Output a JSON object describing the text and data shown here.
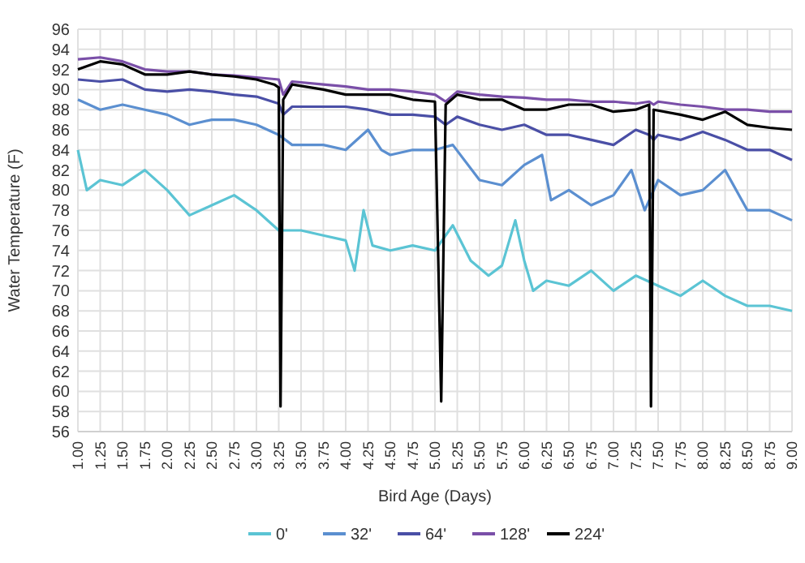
{
  "chart_data": {
    "type": "line",
    "xlabel": "Bird Age (Days)",
    "ylabel": "Water Temperature (F)",
    "xlim": [
      1,
      9
    ],
    "ylim": [
      56,
      96
    ],
    "xticks": [
      {
        "value": 1,
        "label": "1.00"
      },
      {
        "value": 1.25,
        "label": "1.25"
      },
      {
        "value": 1.5,
        "label": "1.50"
      },
      {
        "value": 1.75,
        "label": "1.75"
      },
      {
        "value": 2,
        "label": "2.00"
      },
      {
        "value": 2.25,
        "label": "2.25"
      },
      {
        "value": 2.5,
        "label": "2.50"
      },
      {
        "value": 2.75,
        "label": "2.75"
      },
      {
        "value": 3,
        "label": "3.00"
      },
      {
        "value": 3.25,
        "label": "3.25"
      },
      {
        "value": 3.5,
        "label": "3.50"
      },
      {
        "value": 3.75,
        "label": "3.75"
      },
      {
        "value": 4,
        "label": "4.00"
      },
      {
        "value": 4.25,
        "label": "4.25"
      },
      {
        "value": 4.5,
        "label": "4.50"
      },
      {
        "value": 4.75,
        "label": "4.75"
      },
      {
        "value": 5,
        "label": "5.00"
      },
      {
        "value": 5.25,
        "label": "5.25"
      },
      {
        "value": 5.5,
        "label": "5.50"
      },
      {
        "value": 5.75,
        "label": "5.75"
      },
      {
        "value": 6,
        "label": "6.00"
      },
      {
        "value": 6.25,
        "label": "6.25"
      },
      {
        "value": 6.5,
        "label": "6.50"
      },
      {
        "value": 6.75,
        "label": "6.75"
      },
      {
        "value": 7,
        "label": "7.00"
      },
      {
        "value": 7.25,
        "label": "7.25"
      },
      {
        "value": 7.5,
        "label": "7.50"
      },
      {
        "value": 7.75,
        "label": "7.75"
      },
      {
        "value": 8,
        "label": "8.00"
      },
      {
        "value": 8.25,
        "label": "8.25"
      },
      {
        "value": 8.5,
        "label": "8.50"
      },
      {
        "value": 8.75,
        "label": "8.75"
      },
      {
        "value": 9,
        "label": "9.00"
      }
    ],
    "yticks": [
      56,
      58,
      60,
      62,
      64,
      66,
      68,
      70,
      72,
      74,
      76,
      78,
      80,
      82,
      84,
      86,
      88,
      90,
      92,
      94,
      96
    ],
    "grid": true,
    "legend": "bottom",
    "marker": "none",
    "line_style": "solid",
    "series": [
      {
        "name": "0'",
        "color": "#5bc4d4",
        "x": [
          1,
          1.1,
          1.25,
          1.5,
          1.75,
          2,
          2.25,
          2.5,
          2.75,
          3,
          3.25,
          3.5,
          3.75,
          4,
          4.1,
          4.2,
          4.3,
          4.5,
          4.75,
          5,
          5.2,
          5.4,
          5.6,
          5.75,
          5.9,
          6,
          6.1,
          6.25,
          6.5,
          6.75,
          7,
          7.25,
          7.5,
          7.75,
          8,
          8.25,
          8.5,
          8.75,
          9
        ],
        "values": [
          84,
          80,
          81,
          80.5,
          82,
          80,
          77.5,
          78.5,
          79.5,
          78,
          76,
          76,
          75.5,
          75,
          72,
          78,
          74.5,
          74,
          74.5,
          74,
          76.5,
          73,
          71.5,
          72.5,
          77,
          73,
          70,
          71,
          70.5,
          72,
          70,
          71.5,
          70.5,
          69.5,
          71,
          69.5,
          68.5,
          68.5,
          68
        ]
      },
      {
        "name": "32'",
        "color": "#5b8fd0",
        "x": [
          1,
          1.25,
          1.5,
          1.75,
          2,
          2.25,
          2.5,
          2.75,
          3,
          3.25,
          3.4,
          3.75,
          4,
          4.25,
          4.4,
          4.5,
          4.75,
          5,
          5.2,
          5.5,
          5.75,
          6,
          6.2,
          6.3,
          6.5,
          6.75,
          7,
          7.2,
          7.35,
          7.5,
          7.75,
          8,
          8.25,
          8.5,
          8.75,
          9
        ],
        "values": [
          89,
          88,
          88.5,
          88,
          87.5,
          86.5,
          87,
          87,
          86.5,
          85.5,
          84.5,
          84.5,
          84,
          86,
          84,
          83.5,
          84,
          84,
          84.5,
          81,
          80.5,
          82.5,
          83.5,
          79,
          80,
          78.5,
          79.5,
          82,
          78,
          81,
          79.5,
          80,
          82,
          78,
          78,
          77
        ]
      },
      {
        "name": "64'",
        "color": "#4a4fa6",
        "x": [
          1,
          1.25,
          1.5,
          1.75,
          2,
          2.25,
          2.5,
          2.75,
          3,
          3.25,
          3.3,
          3.4,
          3.75,
          4,
          4.25,
          4.5,
          4.75,
          5,
          5.12,
          5.25,
          5.5,
          5.75,
          6,
          6.25,
          6.5,
          6.75,
          7,
          7.25,
          7.4,
          7.45,
          7.5,
          7.75,
          8,
          8.25,
          8.5,
          8.75,
          9
        ],
        "values": [
          91,
          90.8,
          91,
          90,
          89.8,
          90,
          89.8,
          89.5,
          89.3,
          88.6,
          87.5,
          88.3,
          88.3,
          88.3,
          88,
          87.5,
          87.5,
          87.3,
          86.5,
          87.3,
          86.5,
          86,
          86.5,
          85.5,
          85.5,
          85,
          84.5,
          86,
          85.5,
          85,
          85.5,
          85,
          85.8,
          85,
          84,
          84,
          83
        ]
      },
      {
        "name": "128'",
        "color": "#7a4fa8",
        "x": [
          1,
          1.25,
          1.5,
          1.75,
          2,
          2.25,
          2.5,
          2.75,
          3,
          3.25,
          3.3,
          3.4,
          3.75,
          4,
          4.25,
          4.5,
          4.75,
          5,
          5.12,
          5.25,
          5.5,
          5.75,
          6,
          6.25,
          6.5,
          6.75,
          7,
          7.25,
          7.4,
          7.45,
          7.5,
          7.75,
          8,
          8.25,
          8.5,
          8.75,
          9
        ],
        "values": [
          93,
          93.2,
          92.8,
          92,
          91.8,
          91.8,
          91.5,
          91.4,
          91.2,
          91,
          89.5,
          90.8,
          90.5,
          90.3,
          90,
          90,
          89.8,
          89.5,
          88.8,
          89.8,
          89.5,
          89.3,
          89.2,
          89,
          89,
          88.8,
          88.8,
          88.6,
          88.8,
          88.5,
          88.8,
          88.5,
          88.3,
          88,
          88,
          87.8,
          87.8
        ]
      },
      {
        "name": "224'",
        "color": "#000000",
        "x": [
          1,
          1.25,
          1.5,
          1.75,
          2,
          2.25,
          2.5,
          2.75,
          3,
          3.2,
          3.25,
          3.27,
          3.3,
          3.4,
          3.75,
          4,
          4.25,
          4.5,
          4.75,
          5,
          5.07,
          5.12,
          5.25,
          5.5,
          5.75,
          6,
          6.25,
          6.5,
          6.75,
          7,
          7.25,
          7.4,
          7.42,
          7.45,
          7.75,
          8,
          8.25,
          8.5,
          8.75,
          9
        ],
        "values": [
          92,
          92.8,
          92.5,
          91.5,
          91.5,
          91.8,
          91.5,
          91.3,
          91,
          90.5,
          90.2,
          58.5,
          89,
          90.5,
          90,
          89.5,
          89.5,
          89.5,
          89,
          88.8,
          59,
          88.5,
          89.5,
          89,
          89,
          88,
          88,
          88.5,
          88.5,
          87.8,
          88,
          88.5,
          58.5,
          88,
          87.5,
          87,
          87.8,
          86.5,
          86.2,
          86
        ]
      }
    ]
  }
}
